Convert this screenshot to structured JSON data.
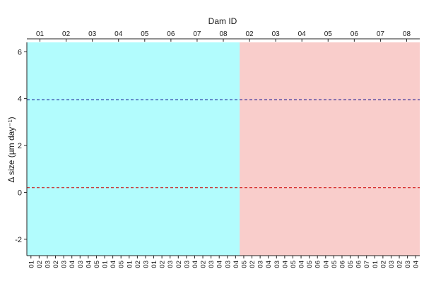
{
  "chart_data": {
    "type": "scatter",
    "title": "",
    "top_axis_title": "Dam ID",
    "ylabel": "Δ size (µm day⁻¹)",
    "ylim": [
      -2.7,
      6.4
    ],
    "y_ticks": [
      -2,
      0,
      2,
      4,
      6
    ],
    "grid": false,
    "top_axis_labels": [
      "01",
      "02",
      "03",
      "04",
      "05",
      "06",
      "07",
      "08",
      "02",
      "03",
      "04",
      "05",
      "06",
      "07",
      "08"
    ],
    "bottom_axis_labels": [
      "01",
      "02",
      "03",
      "02",
      "03",
      "04",
      "03",
      "04",
      "05",
      "01",
      "04",
      "05",
      "01",
      "02",
      "03",
      "01",
      "02",
      "03",
      "02",
      "03",
      "04",
      "02",
      "03",
      "04",
      "03",
      "04",
      "05",
      "02",
      "03",
      "04",
      "03",
      "04",
      "05",
      "04",
      "05",
      "06",
      "04",
      "05",
      "06",
      "05",
      "06",
      "07",
      "01",
      "02",
      "03",
      "02",
      "03",
      "04"
    ],
    "groups": [
      {
        "name": "",
        "color": "#b2fcfd",
        "from_index": 0,
        "to_index": 26
      },
      {
        "name": "",
        "color": "#f9cdcb",
        "from_index": 26,
        "to_index": 47
      }
    ],
    "reference_lines": [
      {
        "y": 3.95,
        "color": "#00008b",
        "style": "dashed"
      },
      {
        "y": 0.2,
        "color": "#cc0000",
        "style": "dashed"
      }
    ],
    "series": []
  }
}
